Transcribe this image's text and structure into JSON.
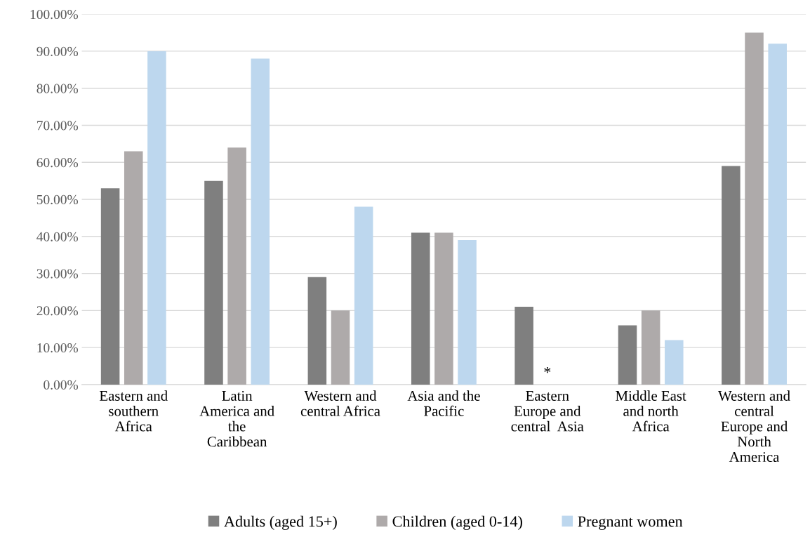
{
  "chart_data": {
    "type": "bar",
    "categories": [
      "Eastern and\nsouthern\nAfrica",
      "Latin\nAmerica and\nthe\nCaribbean",
      "Western and\ncentral Africa",
      "Asia and the\nPacific",
      "Eastern\nEurope and\ncentral  Asia",
      "Middle East\nand north\nAfrica",
      "Western and\ncentral\nEurope and\nNorth\nAmerica"
    ],
    "series": [
      {
        "name": "Adults (aged 15+)",
        "color": "#7f7f7f",
        "values": [
          53,
          55,
          29,
          41,
          21,
          16,
          59
        ]
      },
      {
        "name": "Children (aged 0-14)",
        "color": "#aeaaaa",
        "values": [
          63,
          64,
          20,
          41,
          null,
          20,
          95
        ]
      },
      {
        "name": "Pregnant women",
        "color": "#bdd7ee",
        "values": [
          90,
          88,
          48,
          39,
          null,
          12,
          92
        ]
      }
    ],
    "ylim": [
      0,
      100
    ],
    "yticks": [
      {
        "value": 0,
        "label": "0.00%"
      },
      {
        "value": 10,
        "label": "10.00%"
      },
      {
        "value": 20,
        "label": "20.00%"
      },
      {
        "value": 30,
        "label": "30.00%"
      },
      {
        "value": 40,
        "label": "40.00%"
      },
      {
        "value": 50,
        "label": "50.00%"
      },
      {
        "value": 60,
        "label": "60.00%"
      },
      {
        "value": 70,
        "label": "70.00%"
      },
      {
        "value": 80,
        "label": "80.00%"
      },
      {
        "value": 90,
        "label": "90.00%"
      },
      {
        "value": 100,
        "label": "100.00%"
      }
    ],
    "annotations": [
      "*"
    ],
    "grid": "y",
    "legend": "bottom"
  }
}
